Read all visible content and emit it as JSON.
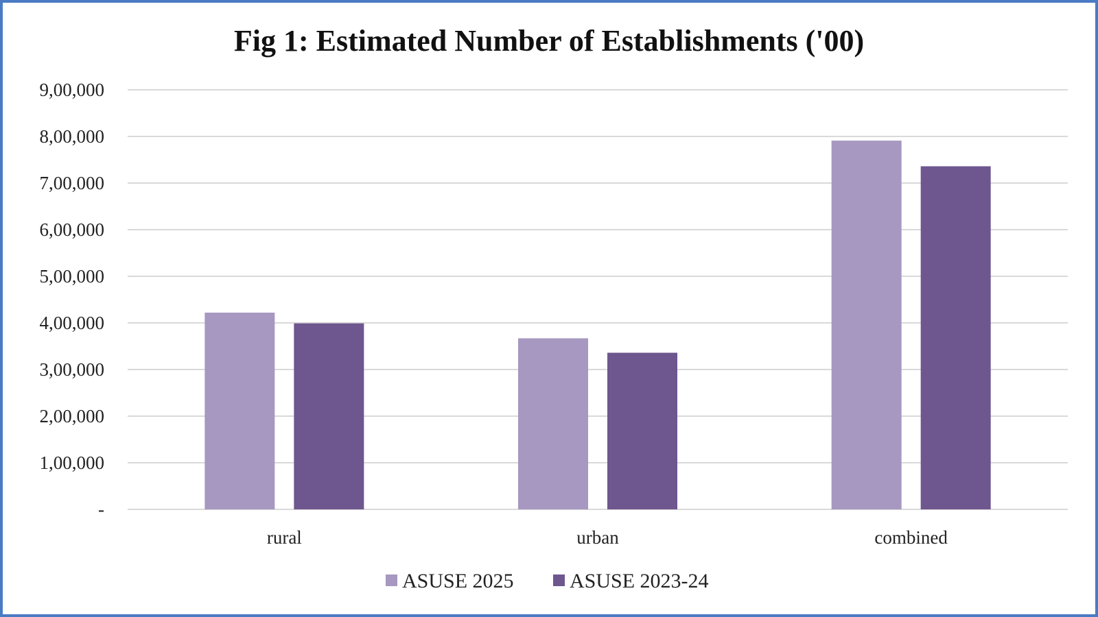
{
  "chart_data": {
    "type": "bar",
    "title": "Fig 1: Estimated Number of Establishments ('00)",
    "xlabel": "",
    "ylabel": "",
    "categories": [
      "rural",
      "urban",
      "combined"
    ],
    "series": [
      {
        "name": "ASUSE 2025",
        "color": "#a698c0",
        "values": [
          422000,
          367000,
          791000
        ]
      },
      {
        "name": "ASUSE 2023-24",
        "color": "#6e568f",
        "values": [
          399000,
          336000,
          736000
        ]
      }
    ],
    "ylim": [
      0,
      900000
    ],
    "yticks": [
      0,
      100000,
      200000,
      300000,
      400000,
      500000,
      600000,
      700000,
      800000,
      900000
    ],
    "ytick_labels": [
      "-",
      "1,00,000",
      "2,00,000",
      "3,00,000",
      "4,00,000",
      "5,00,000",
      "6,00,000",
      "7,00,000",
      "8,00,000",
      "9,00,000"
    ],
    "grid": true,
    "legend": "bottom"
  }
}
